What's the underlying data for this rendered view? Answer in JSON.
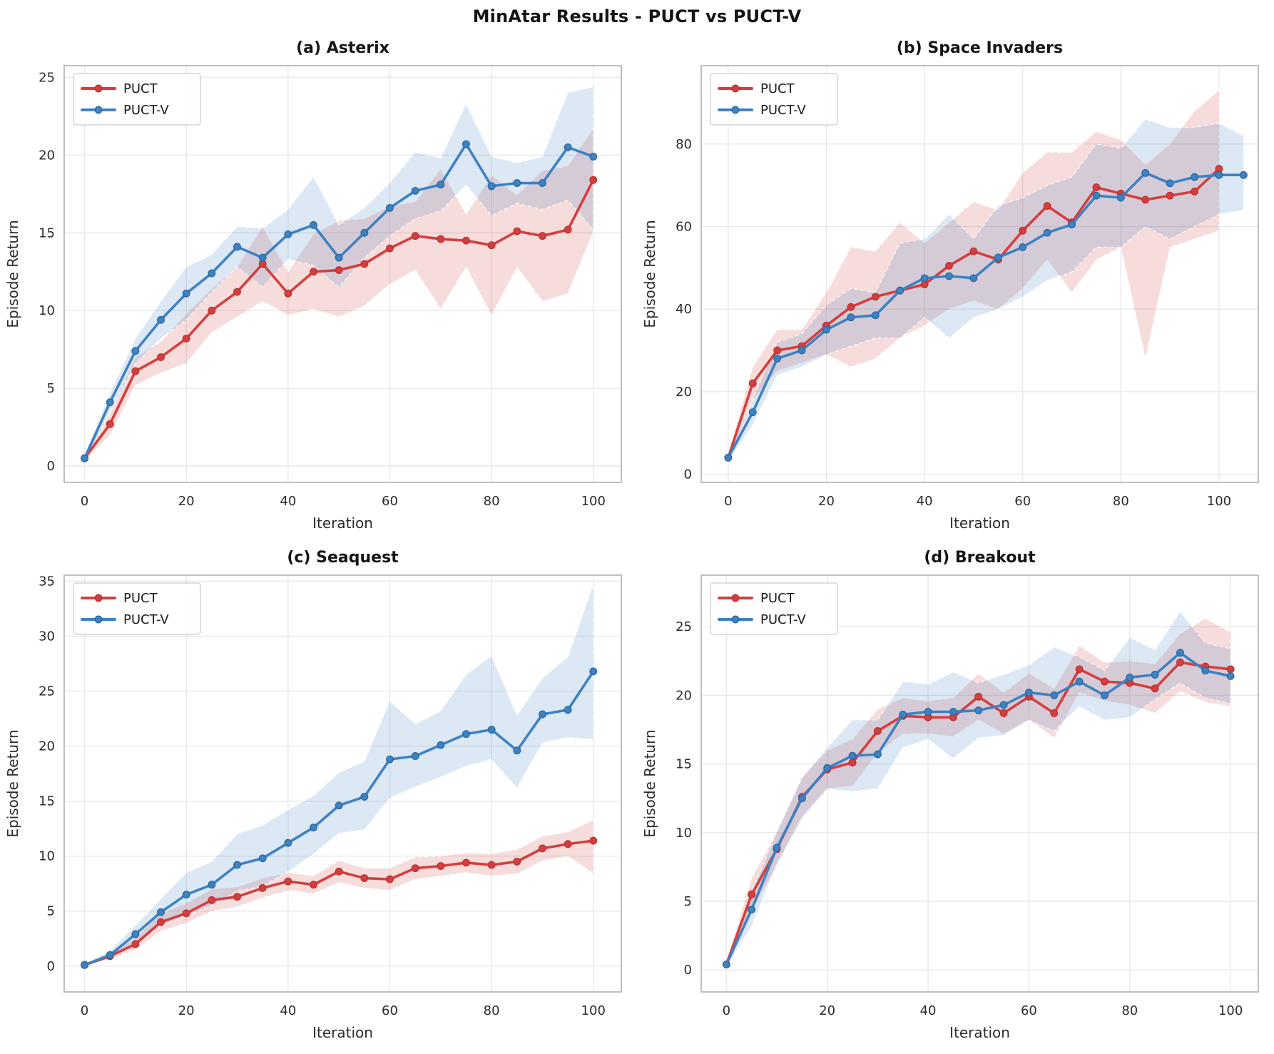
{
  "page_title": "MinAtar Results - PUCT vs PUCT-V",
  "colors": {
    "puct": "#d53e3e",
    "puct_edge": "#b93232",
    "puct_v": "#3d82c2",
    "puct_v_edge": "#2e689e",
    "band_opacity": 0.18,
    "grid": "#e8e8e8",
    "spine": "#bfbfbf",
    "title_text": "#151515",
    "tick_text": "#2b2b2b",
    "legend_border": "#cccccc"
  },
  "legend": {
    "entries": [
      "PUCT",
      "PUCT-V"
    ]
  },
  "chart_data": [
    {
      "type": "line",
      "panel": "(a) Asterix",
      "xlabel": "Iteration",
      "ylabel": "Episode Return",
      "grid": true,
      "legend_position": "upper-left",
      "xlim": [
        -4,
        105.5
      ],
      "ylim": [
        -1.05,
        25.75
      ],
      "xticks": [
        0,
        20,
        40,
        60,
        80,
        100
      ],
      "yticks": [
        0,
        5,
        10,
        15,
        20,
        25
      ],
      "series": [
        {
          "name": "PUCT",
          "color": "#d53e3e",
          "edge": "#b93232",
          "x": [
            0,
            5,
            10,
            15,
            20,
            25,
            30,
            35,
            40,
            45,
            50,
            55,
            60,
            65,
            70,
            75,
            80,
            85,
            90,
            95,
            100
          ],
          "values": [
            0.5,
            2.7,
            6.1,
            7.0,
            8.2,
            10.0,
            11.2,
            13.0,
            11.1,
            12.5,
            12.6,
            13.0,
            14.0,
            14.8,
            14.6,
            14.5,
            14.2,
            15.1,
            14.8,
            15.2,
            18.4
          ],
          "band_lower": [
            0.3,
            2.0,
            5.2,
            6.0,
            6.6,
            8.6,
            9.6,
            10.6,
            9.7,
            10.1,
            9.6,
            10.3,
            11.7,
            12.6,
            10.1,
            12.8,
            9.7,
            12.8,
            10.6,
            11.1,
            15.1
          ],
          "band_upper": [
            0.7,
            3.4,
            7.0,
            8.0,
            9.8,
            11.4,
            12.8,
            15.4,
            12.5,
            14.9,
            15.8,
            15.9,
            16.7,
            17.0,
            19.1,
            16.2,
            18.7,
            17.4,
            19.0,
            19.3,
            21.7
          ]
        },
        {
          "name": "PUCT-V",
          "color": "#3d82c2",
          "edge": "#2e689e",
          "x": [
            0,
            5,
            10,
            15,
            20,
            25,
            30,
            35,
            40,
            45,
            50,
            55,
            60,
            65,
            70,
            75,
            80,
            85,
            90,
            95,
            100
          ],
          "values": [
            0.5,
            4.1,
            7.4,
            9.4,
            11.1,
            12.4,
            14.1,
            13.4,
            14.9,
            15.5,
            13.4,
            15.0,
            16.6,
            17.7,
            18.1,
            20.7,
            18.0,
            18.2,
            18.2,
            20.5,
            19.9
          ],
          "band_lower": [
            0.3,
            3.5,
            6.6,
            8.2,
            9.4,
            11.2,
            12.8,
            11.5,
            13.3,
            12.9,
            11.5,
            13.4,
            14.8,
            15.9,
            16.4,
            18.1,
            16.1,
            16.9,
            16.5,
            17.1,
            15.2
          ],
          "band_upper": [
            0.7,
            4.7,
            8.2,
            10.6,
            12.8,
            13.6,
            15.4,
            15.3,
            16.5,
            18.6,
            15.5,
            16.6,
            18.2,
            20.2,
            19.8,
            23.3,
            19.9,
            19.5,
            19.9,
            24.0,
            24.4
          ]
        }
      ]
    },
    {
      "type": "line",
      "panel": "(b) Space Invaders",
      "xlabel": "Iteration",
      "ylabel": "Episode Return",
      "grid": true,
      "legend_position": "upper-left",
      "xlim": [
        -5.5,
        108
      ],
      "ylim": [
        -2,
        99
      ],
      "xticks": [
        0,
        20,
        40,
        60,
        80,
        100
      ],
      "yticks": [
        0,
        20,
        40,
        60,
        80
      ],
      "series": [
        {
          "name": "PUCT",
          "color": "#d53e3e",
          "edge": "#b93232",
          "x": [
            0,
            5,
            10,
            15,
            20,
            25,
            30,
            35,
            40,
            45,
            50,
            55,
            60,
            65,
            70,
            75,
            80,
            85,
            90,
            95,
            100
          ],
          "values": [
            4,
            22,
            30,
            31,
            36,
            40.5,
            43,
            44.5,
            46,
            50.5,
            54,
            52,
            59,
            65,
            61,
            69.5,
            68,
            66.5,
            67.5,
            68.5,
            74
          ],
          "band_lower": [
            3,
            18,
            25,
            27,
            29,
            26,
            28,
            33,
            36,
            40,
            42,
            40,
            45,
            52,
            44,
            52,
            55,
            28,
            55,
            57,
            59
          ],
          "band_upper": [
            5,
            26,
            35,
            35,
            44,
            55,
            54,
            61,
            56,
            61,
            66,
            64,
            73,
            78,
            78,
            83,
            81,
            75,
            80,
            88,
            93
          ]
        },
        {
          "name": "PUCT-V",
          "color": "#3d82c2",
          "edge": "#2e689e",
          "x": [
            0,
            5,
            10,
            15,
            20,
            25,
            30,
            35,
            40,
            45,
            50,
            55,
            60,
            65,
            70,
            75,
            80,
            85,
            90,
            95,
            100,
            105
          ],
          "values": [
            4,
            15,
            28,
            30,
            35,
            38,
            38.5,
            44.5,
            47.5,
            48,
            47.5,
            52.5,
            55,
            58.5,
            60.5,
            67.5,
            67,
            73,
            70.5,
            72,
            72.5,
            72.5
          ],
          "band_lower": [
            3,
            12,
            24,
            26,
            29,
            31,
            33,
            33,
            38,
            33,
            38,
            40,
            43,
            47,
            49,
            55,
            55,
            60,
            57,
            60,
            63,
            64
          ],
          "band_upper": [
            5,
            18,
            32,
            34,
            41,
            45,
            44,
            56,
            57,
            63,
            57,
            65,
            67,
            70,
            72,
            80,
            79,
            86,
            84,
            84,
            85,
            82
          ]
        }
      ]
    },
    {
      "type": "line",
      "panel": "(c) Seaquest",
      "xlabel": "Iteration",
      "ylabel": "Episode Return",
      "grid": true,
      "legend_position": "upper-left",
      "xlim": [
        -4,
        105.5
      ],
      "ylim": [
        -2.35,
        35.55
      ],
      "xticks": [
        0,
        20,
        40,
        60,
        80,
        100
      ],
      "yticks": [
        0,
        5,
        10,
        15,
        20,
        25,
        30,
        35
      ],
      "series": [
        {
          "name": "PUCT",
          "color": "#d53e3e",
          "edge": "#b93232",
          "x": [
            0,
            5,
            10,
            15,
            20,
            25,
            30,
            35,
            40,
            45,
            50,
            55,
            60,
            65,
            70,
            75,
            80,
            85,
            90,
            95,
            100
          ],
          "values": [
            0.1,
            0.9,
            2.0,
            4.0,
            4.8,
            6.0,
            6.3,
            7.1,
            7.7,
            7.4,
            8.6,
            8.0,
            7.9,
            8.9,
            9.1,
            9.4,
            9.2,
            9.5,
            10.7,
            11.1,
            11.4
          ],
          "band_lower": [
            0.0,
            0.6,
            1.5,
            3.2,
            3.9,
            5.0,
            5.4,
            6.2,
            6.9,
            6.6,
            7.6,
            7.1,
            6.9,
            7.9,
            8.2,
            8.5,
            8.2,
            8.4,
            9.6,
            10.0,
            8.4
          ],
          "band_upper": [
            0.2,
            1.2,
            2.5,
            4.8,
            5.7,
            7.0,
            7.2,
            8.0,
            8.5,
            8.2,
            9.6,
            8.9,
            8.9,
            9.9,
            10.0,
            10.3,
            10.2,
            10.6,
            11.8,
            12.2,
            13.3
          ]
        },
        {
          "name": "PUCT-V",
          "color": "#3d82c2",
          "edge": "#2e689e",
          "x": [
            0,
            5,
            10,
            15,
            20,
            25,
            30,
            35,
            40,
            45,
            50,
            55,
            60,
            65,
            70,
            75,
            80,
            85,
            90,
            95,
            100
          ],
          "values": [
            0.1,
            1.0,
            2.9,
            4.9,
            6.5,
            7.4,
            9.2,
            9.8,
            11.2,
            12.6,
            14.6,
            15.4,
            18.8,
            19.1,
            20.1,
            21.1,
            21.5,
            19.6,
            22.9,
            23.3,
            26.8
          ],
          "band_lower": [
            0.0,
            0.7,
            2.2,
            3.7,
            4.6,
            5.5,
            6.8,
            7.3,
            8.6,
            10.2,
            12.1,
            12.4,
            15.3,
            16.3,
            17.2,
            18.2,
            18.8,
            16.2,
            20.3,
            20.8,
            20.6
          ],
          "band_upper": [
            0.2,
            1.4,
            3.7,
            6.1,
            8.5,
            9.5,
            12.0,
            12.8,
            14.2,
            15.5,
            17.6,
            18.6,
            24.1,
            22.0,
            23.2,
            26.5,
            28.2,
            22.8,
            26.2,
            28.1,
            34.7
          ]
        }
      ]
    },
    {
      "type": "line",
      "panel": "(d) Breakout",
      "xlabel": "Iteration",
      "ylabel": "Episode Return",
      "grid": true,
      "legend_position": "upper-left",
      "xlim": [
        -5,
        105.5
      ],
      "ylim": [
        -1.6,
        28.75
      ],
      "xticks": [
        0,
        20,
        40,
        60,
        80,
        100
      ],
      "yticks": [
        0,
        5,
        10,
        15,
        20,
        25
      ],
      "series": [
        {
          "name": "PUCT",
          "color": "#d53e3e",
          "edge": "#b93232",
          "x": [
            0,
            5,
            10,
            15,
            20,
            25,
            30,
            35,
            40,
            45,
            50,
            55,
            60,
            65,
            70,
            75,
            80,
            85,
            90,
            95,
            100
          ],
          "values": [
            0.4,
            5.5,
            8.8,
            12.6,
            14.6,
            15.1,
            17.4,
            18.5,
            18.4,
            18.4,
            19.9,
            18.7,
            19.9,
            18.7,
            21.9,
            21.0,
            20.9,
            20.5,
            22.4,
            22.1,
            21.9
          ],
          "band_lower": [
            0.2,
            4.3,
            7.6,
            11.2,
            13.2,
            13.4,
            15.8,
            17.2,
            17.2,
            17.0,
            18.2,
            17.2,
            18.2,
            16.9,
            20.2,
            19.6,
            19.3,
            18.7,
            20.3,
            19.5,
            19.2
          ],
          "band_upper": [
            0.6,
            6.7,
            10.0,
            14.0,
            16.0,
            16.8,
            19.0,
            19.8,
            19.6,
            19.8,
            21.6,
            20.2,
            21.6,
            20.5,
            23.6,
            22.4,
            22.5,
            22.3,
            24.5,
            25.6,
            24.6
          ]
        },
        {
          "name": "PUCT-V",
          "color": "#3d82c2",
          "edge": "#2e689e",
          "x": [
            0,
            5,
            10,
            15,
            20,
            25,
            30,
            35,
            40,
            45,
            50,
            55,
            60,
            65,
            70,
            75,
            80,
            85,
            90,
            95,
            100
          ],
          "values": [
            0.4,
            4.4,
            8.9,
            12.5,
            14.7,
            15.6,
            15.7,
            18.6,
            18.8,
            18.8,
            18.9,
            19.3,
            20.2,
            20.0,
            21.0,
            20.0,
            21.3,
            21.5,
            23.1,
            21.8,
            21.4
          ],
          "band_lower": [
            0.2,
            3.2,
            7.7,
            11.0,
            13.2,
            13.0,
            13.2,
            16.2,
            16.8,
            15.4,
            16.9,
            17.1,
            18.2,
            17.4,
            19.2,
            18.2,
            18.4,
            19.7,
            20.9,
            19.8,
            19.4
          ],
          "band_upper": [
            0.6,
            5.6,
            10.1,
            14.0,
            16.2,
            18.2,
            18.2,
            21.0,
            20.8,
            21.7,
            20.9,
            21.5,
            22.2,
            23.5,
            22.8,
            21.8,
            24.2,
            23.3,
            26.1,
            23.8,
            23.4
          ]
        }
      ]
    }
  ]
}
